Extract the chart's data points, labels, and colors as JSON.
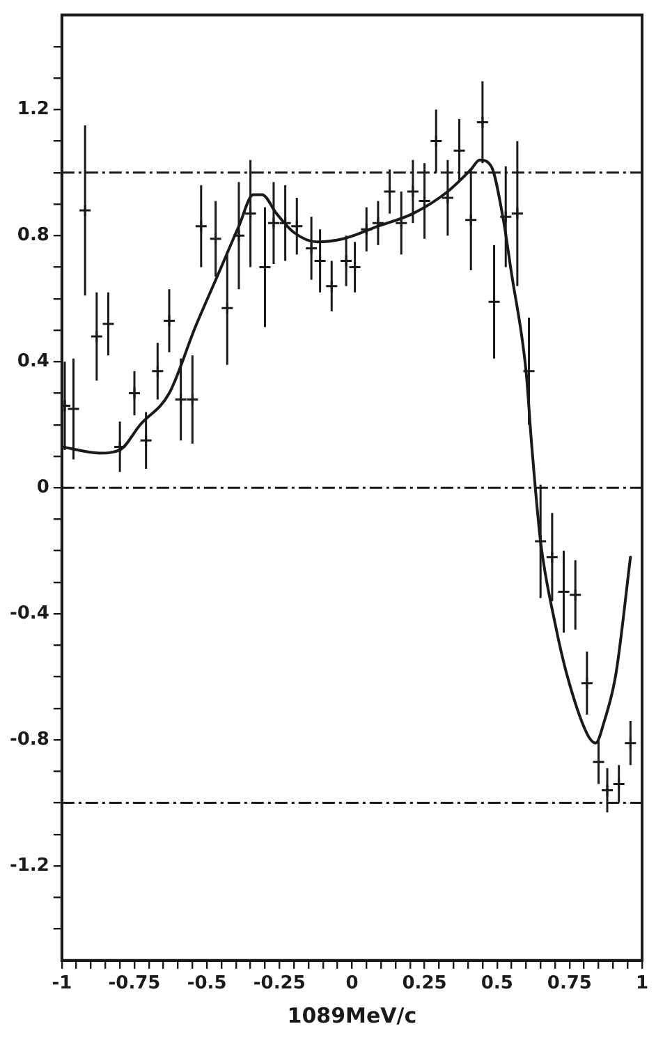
{
  "chart_data": {
    "type": "scatter",
    "xlabel": "1089MeV/c",
    "xlim": [
      -1,
      1
    ],
    "ylim": [
      -1.5,
      1.5
    ],
    "xticks": [
      -1,
      {
        "value": -0.95,
        "label": null
      },
      {
        "value": -0.9,
        "label": null
      },
      {
        "value": -0.85,
        "label": null
      },
      {
        "value": -0.8,
        "label": null
      },
      -0.75,
      {
        "value": -0.7,
        "label": null
      },
      {
        "value": -0.65,
        "label": null
      },
      {
        "value": -0.6,
        "label": null
      },
      {
        "value": -0.55,
        "label": null
      },
      -0.5,
      {
        "value": -0.45,
        "label": null
      },
      {
        "value": -0.4,
        "label": null
      },
      {
        "value": -0.35,
        "label": null
      },
      {
        "value": -0.3,
        "label": null
      },
      -0.25,
      {
        "value": -0.2,
        "label": null
      },
      {
        "value": -0.15,
        "label": null
      },
      {
        "value": -0.1,
        "label": null
      },
      {
        "value": -0.05,
        "label": null
      },
      0,
      {
        "value": 0.05,
        "label": null
      },
      {
        "value": 0.1,
        "label": null
      },
      {
        "value": 0.15,
        "label": null
      },
      {
        "value": 0.2,
        "label": null
      },
      0.25,
      {
        "value": 0.3,
        "label": null
      },
      {
        "value": 0.35,
        "label": null
      },
      {
        "value": 0.4,
        "label": null
      },
      {
        "value": 0.45,
        "label": null
      },
      0.5,
      {
        "value": 0.55,
        "label": null
      },
      {
        "value": 0.6,
        "label": null
      },
      {
        "value": 0.65,
        "label": null
      },
      {
        "value": 0.7,
        "label": null
      },
      0.75,
      {
        "value": 0.8,
        "label": null
      },
      {
        "value": 0.85,
        "label": null
      },
      {
        "value": 0.9,
        "label": null
      },
      {
        "value": 0.95,
        "label": null
      },
      1
    ],
    "yticks": [
      {
        "value": -1.4,
        "label": null
      },
      {
        "value": -1.3,
        "label": null
      },
      -1.2,
      {
        "value": -1.1,
        "label": null
      },
      {
        "value": -1,
        "label": null
      },
      {
        "value": -0.9,
        "label": null
      },
      -0.8,
      {
        "value": -0.7,
        "label": null
      },
      {
        "value": -0.6,
        "label": null
      },
      {
        "value": -0.5,
        "label": null
      },
      -0.4,
      {
        "value": -0.3,
        "label": null
      },
      {
        "value": -0.2,
        "label": null
      },
      {
        "value": -0.1,
        "label": null
      },
      0,
      {
        "value": 0.1,
        "label": null
      },
      {
        "value": 0.2,
        "label": null
      },
      {
        "value": 0.3,
        "label": null
      },
      0.4,
      {
        "value": 0.5,
        "label": null
      },
      {
        "value": 0.6,
        "label": null
      },
      {
        "value": 0.7,
        "label": null
      },
      0.8,
      {
        "value": 0.9,
        "label": null
      },
      {
        "value": 1,
        "label": null
      },
      {
        "value": 1.1,
        "label": null
      },
      1.2,
      {
        "value": 1.3,
        "label": null
      },
      {
        "value": 1.4,
        "label": null
      }
    ],
    "grid": false,
    "legend": false,
    "ref_lines": [
      {
        "axis": "y",
        "value": 1,
        "line_style": "dashdot"
      },
      {
        "axis": "y",
        "value": 0,
        "line_style": "dashdot"
      },
      {
        "axis": "y",
        "value": -1,
        "line_style": "dashdot"
      }
    ],
    "series": [
      {
        "type": "scatter",
        "color": "#1a1a1a",
        "marker": "cross",
        "x": [
          -0.99,
          -0.96,
          -0.92,
          -0.88,
          -0.84,
          -0.8,
          -0.75,
          -0.71,
          -0.67,
          -0.63,
          -0.59,
          -0.55,
          -0.52,
          -0.47,
          -0.43,
          -0.39,
          -0.35,
          -0.3,
          -0.27,
          -0.23,
          -0.19,
          -0.14,
          -0.11,
          -0.07,
          -0.02,
          0.01,
          0.05,
          0.09,
          0.13,
          0.17,
          0.21,
          0.25,
          0.29,
          0.33,
          0.37,
          0.41,
          0.45,
          0.49,
          0.53,
          0.57,
          0.61,
          0.65,
          0.69,
          0.73,
          0.77,
          0.81,
          0.85,
          0.88,
          0.92,
          0.96
        ],
        "values": [
          0.26,
          0.25,
          0.88,
          0.48,
          0.52,
          0.13,
          0.3,
          0.15,
          0.37,
          0.53,
          0.28,
          0.28,
          0.83,
          0.79,
          0.57,
          0.8,
          0.87,
          0.7,
          0.84,
          0.84,
          0.83,
          0.76,
          0.72,
          0.64,
          0.72,
          0.7,
          0.82,
          0.84,
          0.94,
          0.84,
          0.94,
          0.91,
          1.1,
          0.92,
          1.07,
          0.85,
          1.16,
          0.59,
          0.86,
          0.87,
          0.37,
          -0.17,
          -0.22,
          -0.33,
          -0.34,
          -0.62,
          -0.87,
          -0.96,
          -0.94,
          -0.81
        ],
        "errors": [
          0.14,
          0.16,
          0.27,
          0.14,
          0.1,
          0.08,
          0.07,
          0.09,
          0.09,
          0.1,
          0.13,
          0.14,
          0.13,
          0.12,
          0.18,
          0.17,
          0.17,
          0.19,
          0.13,
          0.12,
          0.09,
          0.1,
          0.1,
          0.08,
          0.08,
          0.08,
          0.07,
          0.07,
          0.07,
          0.1,
          0.1,
          0.12,
          0.1,
          0.12,
          0.1,
          0.16,
          0.13,
          0.18,
          0.16,
          0.23,
          0.17,
          0.18,
          0.14,
          0.13,
          0.11,
          0.1,
          0.07,
          0.07,
          0.06,
          0.07
        ]
      },
      {
        "type": "line",
        "color": "#1a1a1a",
        "marker": "none",
        "line_style": "solid",
        "x": [
          -1,
          -0.87,
          -0.8,
          -0.73,
          -0.63,
          -0.54,
          -0.46,
          -0.39,
          -0.34,
          -0.31,
          -0.26,
          -0.2,
          -0.12,
          -0.03,
          0.09,
          0.21,
          0.33,
          0.41,
          0.44,
          0.48,
          0.52,
          0.55,
          0.6,
          0.62,
          0.65,
          0.7,
          0.74,
          0.81,
          0.84,
          0.87,
          0.91,
          0.96
        ],
        "values": [
          0.13,
          0.11,
          0.12,
          0.2,
          0.3,
          0.51,
          0.68,
          0.83,
          0.93,
          0.93,
          0.87,
          0.81,
          0.78,
          0.79,
          0.83,
          0.87,
          0.94,
          1.01,
          1.04,
          1.02,
          0.86,
          0.68,
          0.37,
          0.13,
          -0.17,
          -0.43,
          -0.59,
          -0.78,
          -0.81,
          -0.74,
          -0.59,
          -0.22
        ]
      }
    ]
  }
}
